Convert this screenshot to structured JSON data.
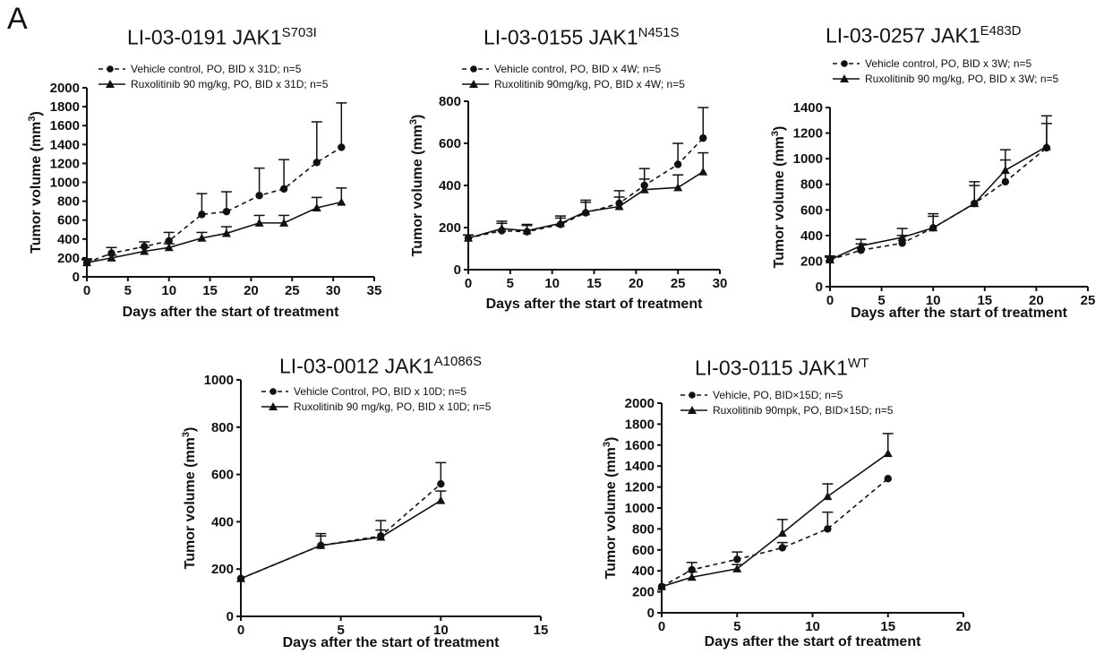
{
  "panel_label": "A",
  "chart_data": [
    {
      "type": "line",
      "title": "LI-03-0191 JAK1",
      "title_sup": "S703I",
      "xlabel": "Days after the start of treatment",
      "ylabel": "Tumor volume (mm",
      "ylabel_sup": "3",
      "ylabel_close": ")",
      "xlim": [
        0,
        35
      ],
      "ylim": [
        0,
        2000
      ],
      "xticks": [
        "0",
        "5",
        "10",
        "15",
        "20",
        "25",
        "30",
        "35"
      ],
      "yticks": [
        "0",
        "200",
        "400",
        "600",
        "800",
        "1000",
        "1200",
        "1400",
        "1600",
        "1800",
        "2000"
      ],
      "grid": false,
      "legend_position": "top-left",
      "series": [
        {
          "name": "Vehicle control, PO, BID x 31D; n=5",
          "marker": "circle",
          "line": "dashed",
          "x": [
            0,
            3,
            7,
            10,
            14,
            17,
            21,
            24,
            28,
            31
          ],
          "y": [
            150,
            250,
            320,
            380,
            660,
            690,
            860,
            930,
            1210,
            1370
          ],
          "err": [
            40,
            60,
            50,
            90,
            220,
            210,
            290,
            310,
            430,
            470
          ]
        },
        {
          "name": "Ruxolitinib 90 mg/kg, PO, BID x 31D; n=5",
          "marker": "triangle",
          "line": "solid",
          "x": [
            0,
            3,
            7,
            10,
            14,
            17,
            21,
            24,
            28,
            31
          ],
          "y": [
            150,
            200,
            270,
            310,
            410,
            460,
            570,
            570,
            730,
            790
          ],
          "err": [
            30,
            30,
            40,
            40,
            60,
            70,
            80,
            80,
            110,
            150
          ]
        }
      ]
    },
    {
      "type": "line",
      "title": "LI-03-0155 JAK1",
      "title_sup": "N451S",
      "xlabel": "Days after the start of treatment",
      "ylabel": "Tumor volume (mm",
      "ylabel_sup": "3",
      "ylabel_close": ")",
      "xlim": [
        0,
        30
      ],
      "ylim": [
        0,
        800
      ],
      "xticks": [
        "0",
        "5",
        "10",
        "15",
        "20",
        "25",
        "30"
      ],
      "yticks": [
        "0",
        "200",
        "400",
        "600",
        "800"
      ],
      "grid": false,
      "legend_position": "top-left",
      "series": [
        {
          "name": "Vehicle control, PO, BID x 4W; n=5",
          "marker": "circle",
          "line": "dashed",
          "x": [
            0,
            4,
            7,
            11,
            14,
            18,
            21,
            25,
            28
          ],
          "y": [
            150,
            185,
            180,
            215,
            270,
            315,
            400,
            500,
            625
          ],
          "err": [
            15,
            45,
            35,
            40,
            60,
            60,
            80,
            100,
            145
          ]
        },
        {
          "name": "Ruxolitinib 90mg/kg, PO, BID x 4W; n=5",
          "marker": "triangle",
          "line": "solid",
          "x": [
            0,
            4,
            7,
            11,
            14,
            18,
            21,
            25,
            28
          ],
          "y": [
            150,
            195,
            185,
            220,
            275,
            300,
            380,
            390,
            465
          ],
          "err": [
            15,
            25,
            25,
            25,
            45,
            45,
            50,
            60,
            90
          ]
        }
      ]
    },
    {
      "type": "line",
      "title": "LI-03-0257 JAK1",
      "title_sup": "E483D",
      "xlabel": "Days after the start of treatment",
      "ylabel": "Tumor volume (mm",
      "ylabel_sup": "3",
      "ylabel_close": ")",
      "xlim": [
        0,
        25
      ],
      "ylim": [
        0,
        1400
      ],
      "xticks": [
        "0",
        "5",
        "10",
        "15",
        "20",
        "25"
      ],
      "yticks": [
        "0",
        "200",
        "400",
        "600",
        "800",
        "1000",
        "1200",
        "1400"
      ],
      "grid": false,
      "legend_position": "top-left",
      "series": [
        {
          "name": "Vehicle control, PO, BID x 3W; n=5",
          "marker": "circle",
          "line": "dashed",
          "x": [
            0,
            3,
            7,
            10,
            14,
            17,
            21
          ],
          "y": [
            210,
            285,
            340,
            460,
            650,
            820,
            1085
          ],
          "err": [
            30,
            50,
            60,
            90,
            140,
            170,
            190
          ]
        },
        {
          "name": "Ruxolitinib 90 mg/kg, PO, BID x 3W; n=5",
          "marker": "triangle",
          "line": "solid",
          "x": [
            0,
            3,
            7,
            10,
            14,
            17,
            21
          ],
          "y": [
            210,
            320,
            385,
            460,
            650,
            910,
            1095
          ],
          "err": [
            20,
            50,
            70,
            110,
            170,
            160,
            240
          ]
        }
      ]
    },
    {
      "type": "line",
      "title": "LI-03-0012 JAK1",
      "title_sup": "A1086S",
      "xlabel": "Days after the start of treatment",
      "ylabel": "Tumor volume (mm",
      "ylabel_sup": "3",
      "ylabel_close": ")",
      "xlim": [
        0,
        15
      ],
      "ylim": [
        0,
        1000
      ],
      "xticks": [
        "0",
        "5",
        "10",
        "15"
      ],
      "yticks": [
        "0",
        "200",
        "400",
        "600",
        "800",
        "1000"
      ],
      "grid": false,
      "legend_position": "top-left",
      "series": [
        {
          "name": "Vehicle Control, PO, BID x 10D; n=5",
          "marker": "circle",
          "line": "dashed",
          "x": [
            0,
            4,
            7,
            10
          ],
          "y": [
            160,
            300,
            340,
            560
          ],
          "err": [
            0,
            50,
            65,
            90
          ]
        },
        {
          "name": "Ruxolitinib 90 mg/kg, PO, BID x 10D; n=5",
          "marker": "triangle",
          "line": "solid",
          "x": [
            0,
            4,
            7,
            10
          ],
          "y": [
            160,
            300,
            335,
            490
          ],
          "err": [
            0,
            40,
            30,
            40
          ]
        }
      ]
    },
    {
      "type": "line",
      "title": "LI-03-0115 JAK1",
      "title_sup": "WT",
      "xlabel": "Days after the start of treatment",
      "ylabel": "Tumor volume (mm",
      "ylabel_sup": "3",
      "ylabel_close": ")",
      "xlim": [
        0,
        20
      ],
      "ylim": [
        0,
        2000
      ],
      "xticks": [
        "0",
        "5",
        "10",
        "15",
        "20"
      ],
      "yticks": [
        "0",
        "200",
        "400",
        "600",
        "800",
        "1000",
        "1200",
        "1400",
        "1600",
        "1800",
        "2000"
      ],
      "grid": false,
      "legend_position": "top-left",
      "series": [
        {
          "name": "Vehicle, PO, BID×15D; n=5",
          "marker": "circle",
          "line": "dashed",
          "x": [
            0,
            2,
            5,
            8,
            11,
            15
          ],
          "y": [
            250,
            410,
            510,
            620,
            800,
            1280
          ],
          "err": [
            0,
            70,
            70,
            50,
            160,
            0
          ]
        },
        {
          "name": "Ruxolitinib 90mpk, PO, BID×15D; n=5",
          "marker": "triangle",
          "line": "solid",
          "x": [
            0,
            2,
            5,
            8,
            11,
            15
          ],
          "y": [
            250,
            340,
            420,
            760,
            1110,
            1520
          ],
          "err": [
            0,
            50,
            40,
            130,
            120,
            190
          ]
        }
      ]
    }
  ]
}
